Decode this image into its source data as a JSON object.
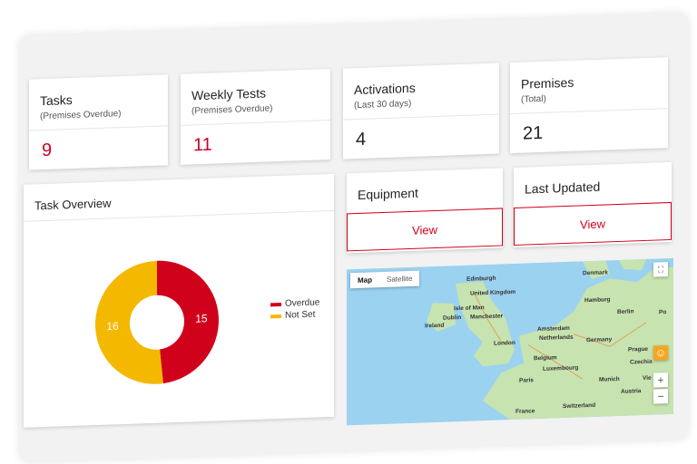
{
  "tasks": {
    "title": "Tasks",
    "subtitle": "(Premises Overdue)",
    "value": "9"
  },
  "weekly_tests": {
    "title": "Weekly Tests",
    "subtitle": "(Premises Overdue)",
    "value": "11"
  },
  "activations": {
    "title": "Activations",
    "subtitle": "(Last 30 days)",
    "value": "4"
  },
  "premises": {
    "title": "Premises",
    "subtitle": "(Total)",
    "value": "21"
  },
  "task_overview": {
    "title": "Task Overview",
    "legend": [
      "Overdue",
      "Not Set"
    ]
  },
  "equipment": {
    "title": "Equipment",
    "button": "View"
  },
  "last_updated": {
    "title": "Last Updated",
    "button": "View"
  },
  "map": {
    "map_tab": "Map",
    "satellite_tab": "Satellite",
    "labels": [
      "Edinburgh",
      "United Kingdom",
      "Isle of Man",
      "Dublin",
      "Ireland",
      "Manchester",
      "London",
      "Amsterdam",
      "Netherlands",
      "Belgium",
      "Luxembourg",
      "Paris",
      "France",
      "Denmark",
      "Hamburg",
      "Berlin",
      "Germany",
      "Prague",
      "Czechia",
      "Munich",
      "Austria",
      "Switzerland",
      "Vie",
      "Po"
    ],
    "zoom_in": "+",
    "zoom_out": "−"
  },
  "colors": {
    "accent": "#d0021b",
    "overdue": "#d0021b",
    "not_set": "#f5b800"
  },
  "chart_data": {
    "type": "pie",
    "title": "Task Overview",
    "labels": [
      "Overdue",
      "Not Set"
    ],
    "values": [
      15,
      16
    ],
    "colors": [
      "#d0021b",
      "#f5b800"
    ],
    "legend_position": "right"
  }
}
